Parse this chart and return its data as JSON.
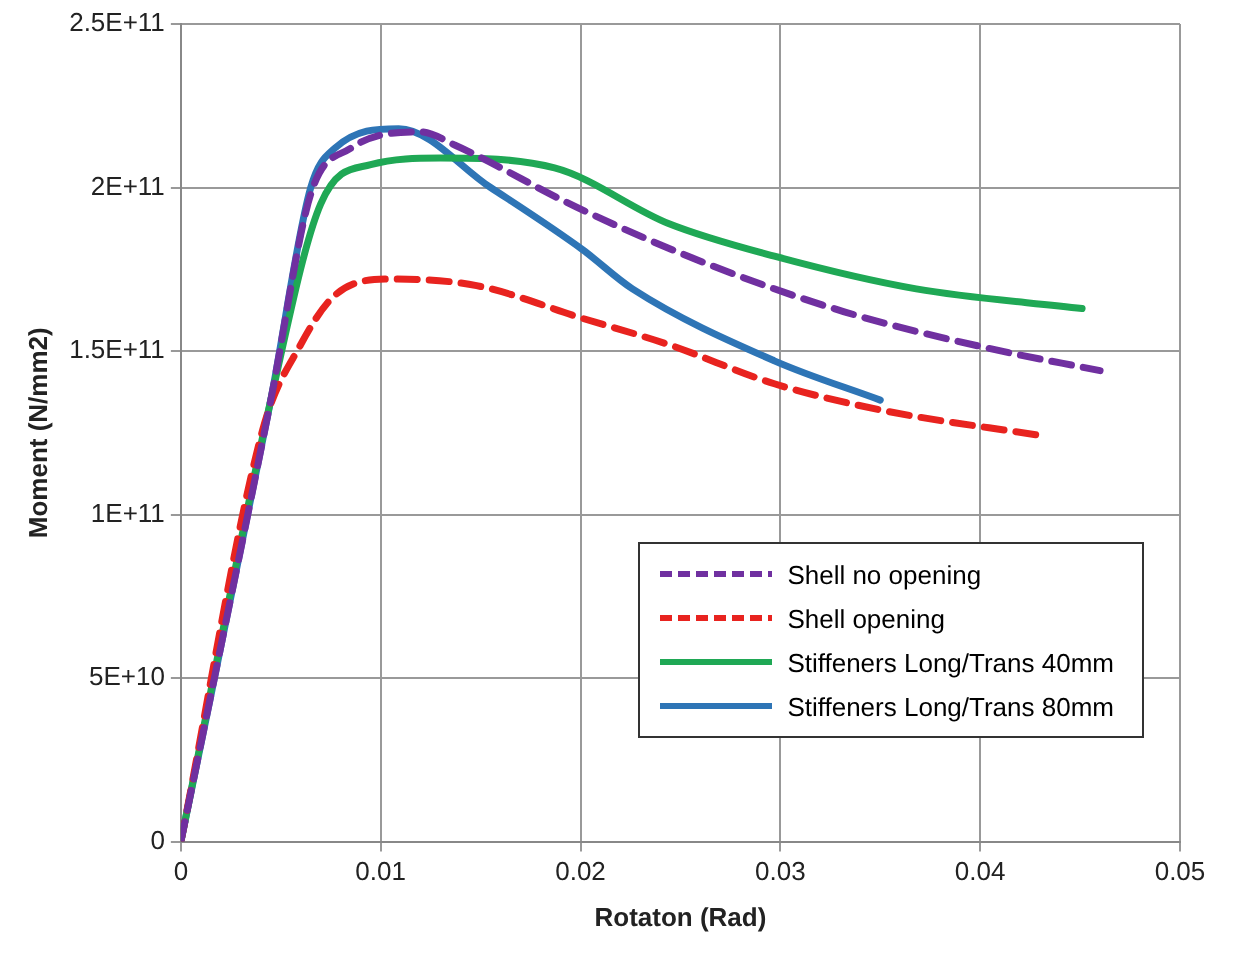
{
  "chart_data": {
    "type": "line",
    "xlabel": "Rotaton (Rad)",
    "ylabel": "Moment (N/mm2)",
    "xlim": [
      0,
      0.05
    ],
    "xticks": [
      0,
      0.01,
      0.02,
      0.03,
      0.04,
      0.05
    ],
    "ylim": [
      0,
      250000000000
    ],
    "yticks": [
      {
        "value": 0,
        "label": "0"
      },
      {
        "value": 50000000000,
        "label": "5E+10"
      },
      {
        "value": 100000000000,
        "label": "1E+11"
      },
      {
        "value": 150000000000,
        "label": "1.5E+11"
      },
      {
        "value": 200000000000,
        "label": "2E+11"
      },
      {
        "value": 250000000000,
        "label": "2.5E+11"
      }
    ],
    "grid": true,
    "legend": "bottom right",
    "marker": "none",
    "series": [
      {
        "name": "Shell no opening",
        "color": "#7030a0",
        "line_style": "dashed",
        "x": [
          0,
          0.0045,
          0.0065,
          0.0085,
          0.012,
          0.0137,
          0.0198,
          0.0262,
          0.0332,
          0.0403,
          0.046
        ],
        "values": [
          0,
          135000000000,
          198000000000,
          212000000000,
          217000000000,
          213000000000,
          194000000000,
          177000000000,
          162000000000,
          151000000000,
          144000000000
        ]
      },
      {
        "name": "Shell opening",
        "color": "#e8231f",
        "line_style": "dashed",
        "x": [
          0,
          0.0041,
          0.006,
          0.0077,
          0.0105,
          0.0148,
          0.0201,
          0.0244,
          0.0297,
          0.035,
          0.0432
        ],
        "values": [
          0,
          126000000000,
          152000000000,
          167000000000,
          172000000000,
          170000000000,
          160000000000,
          152000000000,
          140000000000,
          132000000000,
          124000000000
        ]
      },
      {
        "name": "Stiffeners Long/Trans 40mm",
        "color": "#1fa855",
        "line_style": "solid",
        "x": [
          0,
          0.0045,
          0.007,
          0.0095,
          0.013,
          0.0187,
          0.0244,
          0.0297,
          0.0368,
          0.0451
        ],
        "values": [
          0,
          135000000000,
          195000000000,
          207000000000,
          209000000000,
          206000000000,
          189000000000,
          179000000000,
          169000000000,
          163000000000
        ]
      },
      {
        "name": "Stiffeners Long/Trans 80mm",
        "color": "#2e75b6",
        "line_style": "solid",
        "x": [
          0,
          0.0045,
          0.0065,
          0.0077,
          0.0109,
          0.0155,
          0.0201,
          0.0226,
          0.0297,
          0.035
        ],
        "values": [
          0,
          135000000000,
          200000000000,
          212000000000,
          218000000000,
          200000000000,
          181000000000,
          169000000000,
          147000000000,
          135000000000
        ]
      }
    ]
  }
}
